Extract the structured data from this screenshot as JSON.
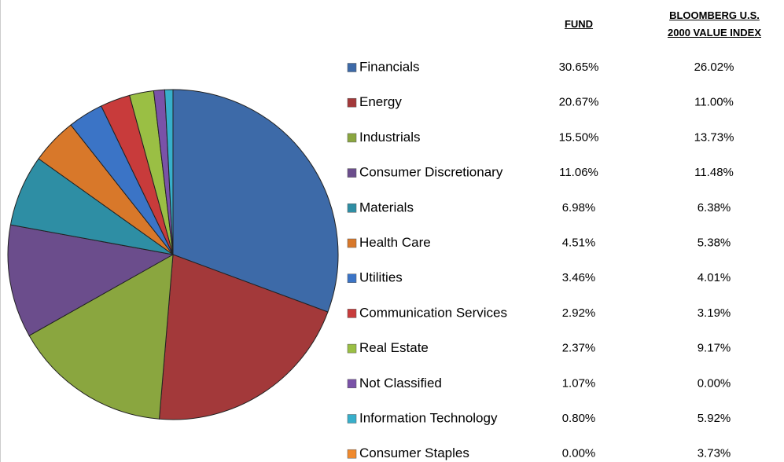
{
  "chart_data": {
    "type": "pie",
    "categories": [
      "Financials",
      "Energy",
      "Industrials",
      "Consumer Discretionary",
      "Materials",
      "Health Care",
      "Utilities",
      "Communication Services",
      "Real Estate",
      "Not Classified",
      "Information Technology",
      "Consumer Staples"
    ],
    "colors": [
      "#3d6aa8",
      "#a3393a",
      "#8aa63f",
      "#6b4d8c",
      "#2e8ea4",
      "#d8782a",
      "#3b74c6",
      "#c83b3b",
      "#9abf44",
      "#7a52a8",
      "#37afcb",
      "#f08a2e"
    ],
    "series": [
      {
        "name": "FUND",
        "values": [
          30.65,
          20.67,
          15.5,
          11.06,
          6.98,
          4.51,
          3.46,
          2.92,
          2.37,
          1.07,
          0.8,
          0.0
        ],
        "value_labels": [
          "30.65%",
          "20.67%",
          "15.50%",
          "11.06%",
          "6.98%",
          "4.51%",
          "3.46%",
          "2.92%",
          "2.37%",
          "1.07%",
          "0.80%",
          "0.00%"
        ]
      },
      {
        "name": "BLOOMBERG U.S. 2000 VALUE INDEX",
        "values": [
          26.02,
          11.0,
          13.73,
          11.48,
          6.38,
          5.38,
          4.01,
          3.19,
          9.17,
          0.0,
          5.92,
          3.73
        ],
        "value_labels": [
          "26.02%",
          "11.00%",
          "13.73%",
          "11.48%",
          "6.38%",
          "5.38%",
          "4.01%",
          "3.19%",
          "9.17%",
          "0.00%",
          "5.92%",
          "3.73%"
        ]
      }
    ]
  }
}
